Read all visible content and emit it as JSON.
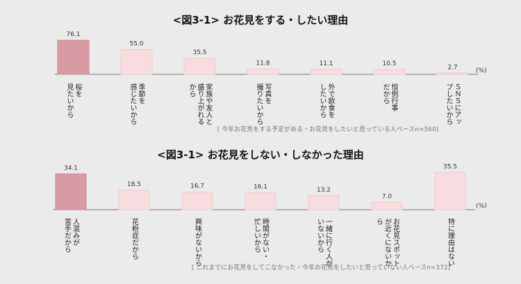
{
  "chart_data": [
    {
      "type": "bar",
      "title": "<図3-1> お花見をする・したい理由",
      "unit": "(%)",
      "note": "[ 今年お花見をする予定がある・お花見をしたいと思っている人ベースn=560]",
      "ylim": [
        0,
        100
      ],
      "highlight_index": 0,
      "categories": [
        [
          "桜を",
          "見たいから"
        ],
        [
          "季節を",
          "感じたいから"
        ],
        [
          "家族や友人と",
          "盛り上がれる",
          "から"
        ],
        [
          "写真を",
          "撮りたいから"
        ],
        [
          "外で飲食を",
          "したいから"
        ],
        [
          "恒例行事",
          "だから"
        ],
        [
          "ＳＮＳにアッ",
          "プしたいから"
        ]
      ],
      "values": [
        76.1,
        55.0,
        35.5,
        11.8,
        11.1,
        10.5,
        2.7
      ],
      "value_labels": [
        "76.1",
        "55.0",
        "35.5",
        "11.8",
        "11.1",
        "10.5",
        "2.7"
      ]
    },
    {
      "type": "bar",
      "title": "<図3-1> お花見をしない・しなかった理由",
      "unit": "(%)",
      "note": "[ これまでにお花見をしてこなかった・今年お花見をしたいと思っていない人ベースn=372]",
      "ylim": [
        0,
        100
      ],
      "highlight_index": 0,
      "categories": [
        [
          "人混みが",
          "苦手だから"
        ],
        [
          "花粉症だから"
        ],
        [
          "興味がないから"
        ],
        [
          "時間がない・",
          "忙しいから"
        ],
        [
          "一緒に行く人が",
          "いないから"
        ],
        [
          "お花見スポット",
          "が近くにないか",
          "ら"
        ],
        [
          "特に理由はない"
        ]
      ],
      "values": [
        34.1,
        18.5,
        16.7,
        16.1,
        13.2,
        7.0,
        35.5
      ],
      "value_labels": [
        "34.1",
        "18.5",
        "16.7",
        "16.1",
        "13.2",
        "7.0",
        "35.5"
      ]
    }
  ],
  "colors": {
    "highlight_fill": "#d89aa3",
    "highlight_stroke": "#c98590",
    "bar_fill": "#f8dde0",
    "bar_stroke": "#efc8cd",
    "axis": "#777777"
  }
}
